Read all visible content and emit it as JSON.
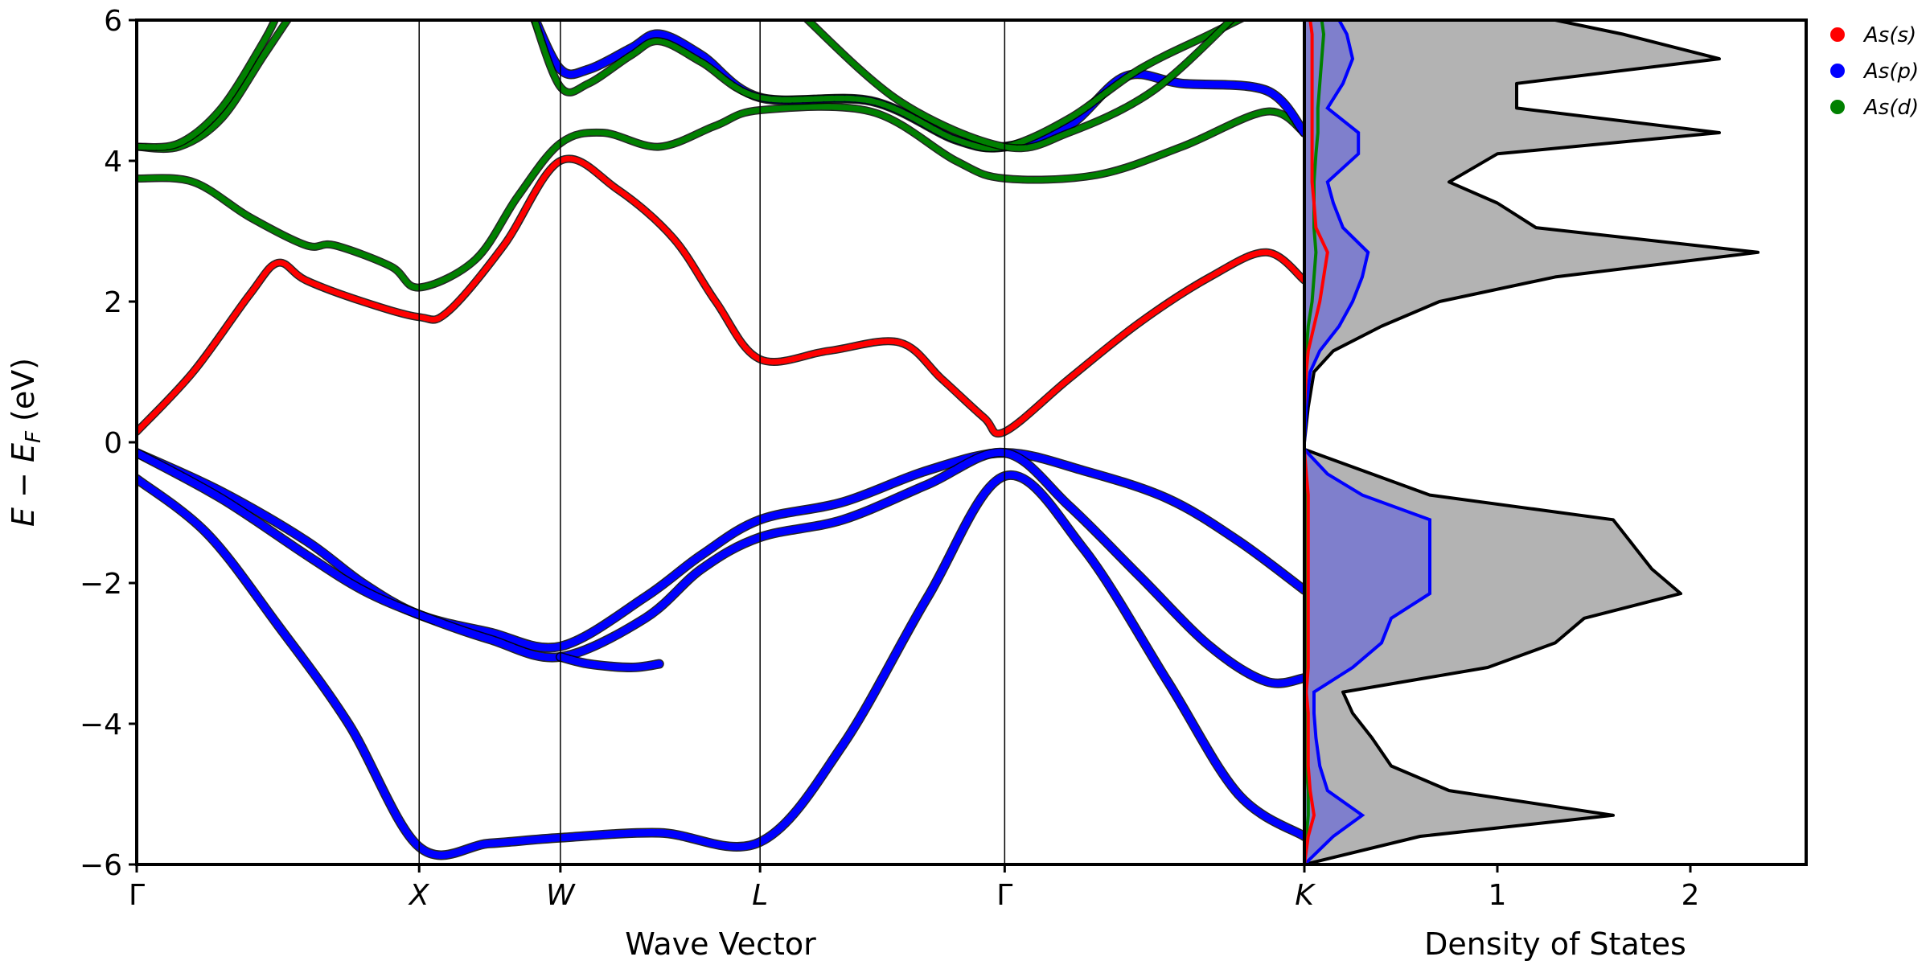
{
  "chart_data": [
    {
      "type": "line",
      "xlabel": "Wave Vector",
      "ylabel_parts": [
        "E",
        " − ",
        "E",
        "F",
        " (eV)"
      ],
      "ylim": [
        -6,
        6
      ],
      "yticks": [
        -6,
        -4,
        -2,
        0,
        2,
        4,
        6
      ],
      "kpoints": [
        {
          "label": "Γ",
          "k": 0.0
        },
        {
          "label": "X",
          "k": 1.0
        },
        {
          "label": "W",
          "k": 1.5
        },
        {
          "label": "L",
          "k": 2.207
        },
        {
          "label": "Γ",
          "k": 3.073
        },
        {
          "label": "K",
          "k": 4.134
        }
      ],
      "xlim": [
        0,
        4.134
      ],
      "grid": false,
      "projection_colors": {
        "As(s)": "#ff0000",
        "As(p)": "#0000ff",
        "As(d)": "#008000"
      },
      "series": [
        {
          "points": [
            [
              0,
              -0.52
            ],
            [
              0.25,
              -1.3
            ],
            [
              0.5,
              -2.6
            ],
            [
              0.75,
              -4.0
            ],
            [
              1.0,
              -5.75
            ],
            [
              1.25,
              -5.7
            ],
            [
              1.5,
              -5.62
            ],
            [
              1.85,
              -5.55
            ],
            [
              2.207,
              -5.68
            ],
            [
              2.5,
              -4.3
            ],
            [
              2.8,
              -2.2
            ],
            [
              3.073,
              -0.48
            ],
            [
              3.35,
              -1.5
            ],
            [
              3.65,
              -3.4
            ],
            [
              3.9,
              -5.0
            ],
            [
              4.134,
              -5.6
            ]
          ],
          "projection": "As(p)"
        },
        {
          "points": [
            [
              0,
              -0.15
            ],
            [
              0.3,
              -0.7
            ],
            [
              0.6,
              -1.4
            ],
            [
              0.8,
              -2.0
            ],
            [
              1.0,
              -2.45
            ],
            [
              1.25,
              -2.7
            ],
            [
              1.5,
              -2.9
            ],
            [
              1.8,
              -2.2
            ],
            [
              2.0,
              -1.6
            ],
            [
              2.207,
              -1.1
            ],
            [
              2.5,
              -0.85
            ],
            [
              2.8,
              -0.4
            ],
            [
              3.073,
              -0.15
            ],
            [
              3.35,
              -0.4
            ],
            [
              3.65,
              -0.8
            ],
            [
              3.9,
              -1.4
            ],
            [
              4.134,
              -2.1
            ]
          ],
          "projection": "As(p)"
        },
        {
          "points": [
            [
              0,
              -0.15
            ],
            [
              0.3,
              -0.8
            ],
            [
              0.6,
              -1.6
            ],
            [
              0.8,
              -2.1
            ],
            [
              1.0,
              -2.45
            ],
            [
              1.25,
              -2.8
            ],
            [
              1.5,
              -3.05
            ],
            [
              1.8,
              -2.5
            ],
            [
              2.0,
              -1.8
            ],
            [
              2.207,
              -1.35
            ],
            [
              2.5,
              -1.1
            ],
            [
              2.8,
              -0.6
            ],
            [
              3.073,
              -0.15
            ],
            [
              3.3,
              -0.9
            ],
            [
              3.55,
              -1.9
            ],
            [
              3.8,
              -2.9
            ],
            [
              4.0,
              -3.4
            ],
            [
              4.134,
              -3.35
            ]
          ],
          "projection": "As(p)"
        },
        {
          "points": [
            [
              1.5,
              -3.05
            ],
            [
              1.6,
              -3.15
            ],
            [
              1.75,
              -3.2
            ],
            [
              1.85,
              -3.15
            ]
          ],
          "projection": "As(p)"
        },
        {
          "points": [
            [
              0,
              0.15
            ],
            [
              0.2,
              1.0
            ],
            [
              0.4,
              2.1
            ],
            [
              0.5,
              2.55
            ],
            [
              0.6,
              2.3
            ],
            [
              0.8,
              2.0
            ],
            [
              1.0,
              1.78
            ],
            [
              1.1,
              1.85
            ],
            [
              1.3,
              2.8
            ],
            [
              1.5,
              4.0
            ],
            [
              1.7,
              3.6
            ],
            [
              1.9,
              2.9
            ],
            [
              2.05,
              2.0
            ],
            [
              2.207,
              1.18
            ],
            [
              2.45,
              1.3
            ],
            [
              2.7,
              1.42
            ],
            [
              2.85,
              0.9
            ],
            [
              3.0,
              0.35
            ],
            [
              3.073,
              0.15
            ],
            [
              3.3,
              0.9
            ],
            [
              3.55,
              1.7
            ],
            [
              3.8,
              2.35
            ],
            [
              4.0,
              2.7
            ],
            [
              4.134,
              2.3
            ]
          ],
          "projection": "As(s)"
        },
        {
          "points": [
            [
              0,
              3.75
            ],
            [
              0.2,
              3.7
            ],
            [
              0.4,
              3.2
            ],
            [
              0.6,
              2.8
            ],
            [
              0.7,
              2.8
            ],
            [
              0.9,
              2.5
            ],
            [
              1.0,
              2.2
            ],
            [
              1.2,
              2.6
            ],
            [
              1.35,
              3.5
            ],
            [
              1.5,
              4.25
            ],
            [
              1.65,
              4.4
            ],
            [
              1.85,
              4.2
            ],
            [
              2.05,
              4.5
            ],
            [
              2.207,
              4.72
            ],
            [
              2.6,
              4.7
            ],
            [
              2.9,
              4.0
            ],
            [
              3.073,
              3.75
            ],
            [
              3.4,
              3.8
            ],
            [
              3.7,
              4.2
            ],
            [
              4.0,
              4.7
            ],
            [
              4.134,
              4.4
            ]
          ],
          "projection": "As(d)"
        },
        {
          "points": [
            [
              0,
              4.2
            ],
            [
              0.15,
              4.2
            ],
            [
              0.3,
              4.6
            ],
            [
              0.45,
              5.5
            ],
            [
              0.55,
              6.1
            ]
          ],
          "projection": "As(d)"
        },
        {
          "points": [
            [
              0,
              4.2
            ],
            [
              0.15,
              4.25
            ],
            [
              0.3,
              4.75
            ],
            [
              0.45,
              5.7
            ],
            [
              0.5,
              6.1
            ]
          ],
          "projection": "As(d)"
        },
        {
          "points": [
            [
              1.4,
              6.1
            ],
            [
              1.5,
              5.3
            ],
            [
              1.6,
              5.3
            ],
            [
              1.75,
              5.6
            ],
            [
              1.85,
              5.8
            ],
            [
              2.0,
              5.5
            ],
            [
              2.207,
              4.9
            ],
            [
              2.6,
              4.85
            ],
            [
              2.9,
              4.3
            ],
            [
              3.073,
              4.2
            ],
            [
              3.3,
              4.5
            ],
            [
              3.5,
              5.2
            ],
            [
              3.7,
              5.1
            ],
            [
              4.0,
              5.0
            ],
            [
              4.134,
              4.4
            ]
          ],
          "projection": "As(p)"
        },
        {
          "points": [
            [
              1.4,
              6.1
            ],
            [
              1.5,
              5.05
            ],
            [
              1.6,
              5.1
            ],
            [
              1.75,
              5.5
            ],
            [
              1.85,
              5.7
            ],
            [
              2.0,
              5.4
            ],
            [
              2.207,
              4.9
            ],
            [
              2.6,
              4.85
            ],
            [
              2.9,
              4.3
            ],
            [
              3.073,
              4.2
            ],
            [
              3.3,
              4.6
            ],
            [
              3.55,
              5.3
            ],
            [
              3.8,
              5.8
            ],
            [
              3.95,
              6.1
            ]
          ],
          "projection": "As(d)"
        },
        {
          "points": [
            [
              2.35,
              6.1
            ],
            [
              2.7,
              4.85
            ],
            [
              3.073,
              4.2
            ],
            [
              3.3,
              4.4
            ],
            [
              3.6,
              5.0
            ],
            [
              3.9,
              6.1
            ]
          ],
          "projection": "As(d)"
        }
      ]
    },
    {
      "type": "area",
      "xlabel": "Density of States",
      "xticks": [
        1,
        2
      ],
      "xlim": [
        0,
        2.6
      ],
      "ylim": [
        -6,
        6
      ],
      "legend_position": "outside-top-right",
      "legend_entries": [
        {
          "label": "As(s)",
          "color": "#ff0000"
        },
        {
          "label": "As(p)",
          "color": "#0000ff"
        },
        {
          "label": "As(d)",
          "color": "#008000"
        }
      ],
      "total_fill": "#b3b3b3",
      "p_fill": "#7f7fcc",
      "energies": [
        -6,
        -5.6,
        -5.3,
        -4.95,
        -4.6,
        -4.2,
        -3.85,
        -3.55,
        -3.2,
        -2.85,
        -2.5,
        -2.15,
        -1.8,
        -1.45,
        -1.1,
        -0.75,
        -0.45,
        -0.1,
        0,
        0.5,
        1.0,
        1.3,
        1.65,
        2.0,
        2.35,
        2.7,
        3.05,
        3.4,
        3.7,
        4.1,
        4.4,
        4.75,
        5.1,
        5.45,
        5.8,
        6
      ],
      "total": [
        0,
        0.6,
        1.6,
        0.75,
        0.45,
        0.35,
        0.25,
        0.2,
        0.95,
        1.3,
        1.45,
        1.95,
        1.8,
        1.7,
        1.6,
        0.65,
        0.35,
        0,
        0,
        0.02,
        0.05,
        0.15,
        0.4,
        0.7,
        1.3,
        2.35,
        1.2,
        1.0,
        0.75,
        1.0,
        2.15,
        1.1,
        1.1,
        2.15,
        1.65,
        1.3
      ],
      "s": [
        0,
        0.02,
        0.05,
        0.03,
        0.02,
        0.02,
        0.02,
        0.01,
        0.02,
        0.02,
        0.02,
        0.02,
        0.02,
        0.02,
        0.02,
        0.02,
        0.01,
        0,
        0,
        0,
        0.01,
        0.02,
        0.05,
        0.08,
        0.1,
        0.12,
        0.06,
        0.05,
        0.04,
        0.04,
        0.04,
        0.04,
        0.04,
        0.04,
        0.04,
        0.03
      ],
      "p": [
        0,
        0.15,
        0.3,
        0.12,
        0.08,
        0.06,
        0.05,
        0.05,
        0.25,
        0.4,
        0.45,
        0.65,
        0.65,
        0.65,
        0.65,
        0.3,
        0.12,
        0,
        0,
        0.01,
        0.03,
        0.08,
        0.18,
        0.25,
        0.3,
        0.33,
        0.2,
        0.15,
        0.12,
        0.28,
        0.28,
        0.12,
        0.2,
        0.25,
        0.22,
        0.18
      ],
      "d": [
        0,
        0.01,
        0.02,
        0.02,
        0.01,
        0.01,
        0.01,
        0.01,
        0.01,
        0.01,
        0.01,
        0.01,
        0.01,
        0.01,
        0.01,
        0.01,
        0,
        0,
        0,
        0,
        0.01,
        0.01,
        0.02,
        0.04,
        0.05,
        0.06,
        0.05,
        0.05,
        0.05,
        0.06,
        0.07,
        0.07,
        0.08,
        0.09,
        0.1,
        0.09
      ]
    }
  ]
}
